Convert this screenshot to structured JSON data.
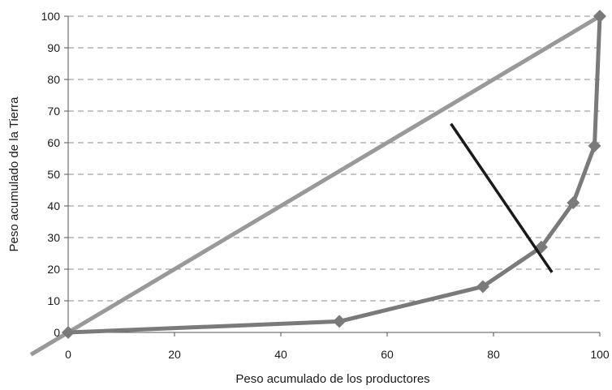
{
  "chart_data": {
    "type": "line",
    "title": "",
    "xlabel": "Peso acumulado de los productores",
    "ylabel": "Peso acumulado de la Tierra",
    "xlim": [
      0,
      100
    ],
    "ylim": [
      0,
      100
    ],
    "x_ticks": [
      "0",
      "20",
      "40",
      "60",
      "80",
      "100"
    ],
    "y_ticks": [
      "0",
      "10",
      "20",
      "30",
      "40",
      "50",
      "60",
      "70",
      "80",
      "90",
      "100"
    ],
    "grid": "horizontal dashed",
    "legend": "none",
    "series": [
      {
        "color": "#999999",
        "marker": "none",
        "x": [
          -7,
          100
        ],
        "y": [
          -7,
          100
        ]
      },
      {
        "color": "#7a7a7a",
        "marker": "diamond",
        "x": [
          0,
          51,
          78,
          89,
          95,
          99,
          100
        ],
        "y": [
          0,
          3.5,
          14.5,
          27,
          41,
          59,
          100
        ]
      },
      {
        "color": "#1a1a1a",
        "marker": "none",
        "x": [
          72,
          91
        ],
        "y": [
          66,
          19
        ]
      }
    ]
  }
}
